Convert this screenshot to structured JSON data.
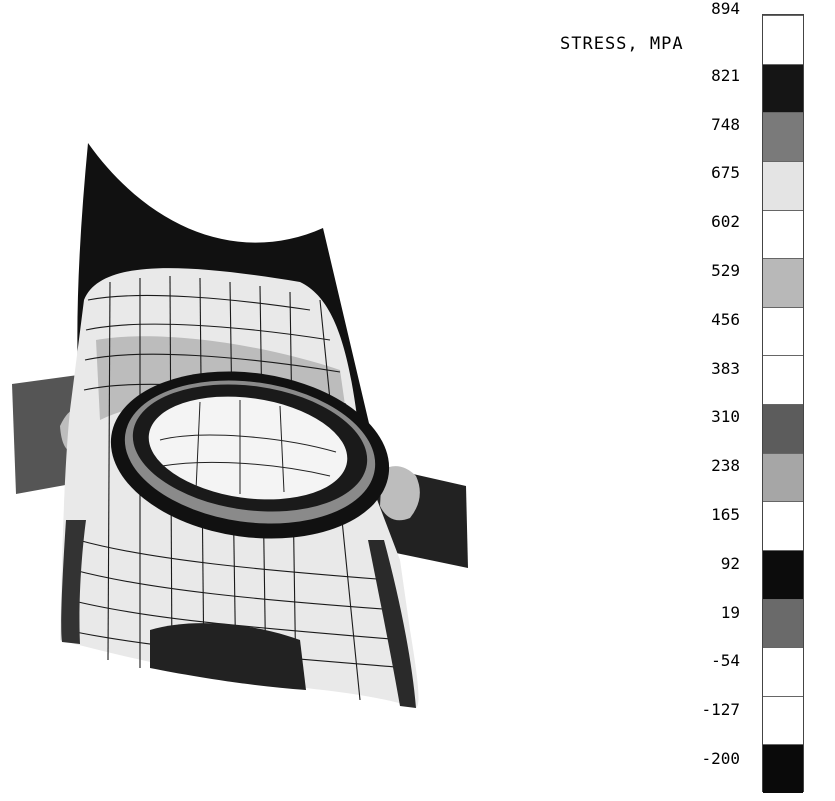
{
  "legend": {
    "title": "STRESS, MPA",
    "ticks": [
      "894",
      "821",
      "748",
      "675",
      "602",
      "529",
      "456",
      "383",
      "310",
      "238",
      "165",
      "92",
      "19",
      "-54",
      "-127",
      "-200"
    ],
    "bands": [
      {
        "shade": "#ffffff"
      },
      {
        "shade": "#151515"
      },
      {
        "shade": "#7a7a7a"
      },
      {
        "shade": "#e4e4e4"
      },
      {
        "shade": "#ffffff"
      },
      {
        "shade": "#b8b8b8"
      },
      {
        "shade": "#ffffff"
      },
      {
        "shade": "#ffffff"
      },
      {
        "shade": "#5c5c5c"
      },
      {
        "shade": "#a6a6a6"
      },
      {
        "shade": "#ffffff"
      },
      {
        "shade": "#0c0c0c"
      },
      {
        "shade": "#6a6a6a"
      },
      {
        "shade": "#ffffff"
      },
      {
        "shade": "#ffffff"
      },
      {
        "shade": "#0a0a0a"
      }
    ]
  },
  "model": {
    "palette": {
      "dark": "#111111",
      "mid": "#6e6e6e",
      "light": "#c9c9c9",
      "white": "#ffffff",
      "mesh": "#1a1a1a"
    }
  }
}
